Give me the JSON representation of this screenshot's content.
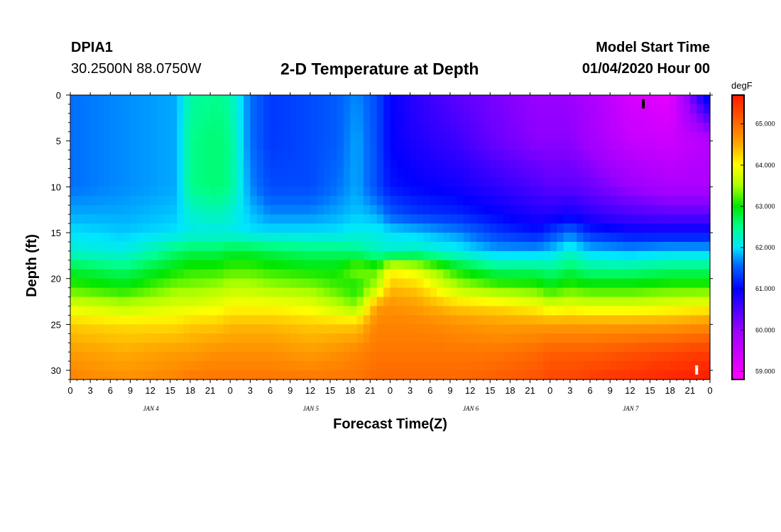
{
  "header": {
    "station": "DPIA1",
    "coords": "30.2500N 88.0750W",
    "title": "2-D Temperature at Depth",
    "model_label": "Model Start Time",
    "model_time": "01/04/2020 Hour 00"
  },
  "chart_data": {
    "type": "heatmap",
    "title": "2-D Temperature at Depth",
    "xlabel": "Forecast Time(Z)",
    "ylabel": "Depth (ft)",
    "xlim_hours": [
      0,
      96
    ],
    "ylim": [
      0,
      31
    ],
    "y_inverted": true,
    "x_tick_hours": [
      0,
      3,
      6,
      9,
      12,
      15,
      18,
      21,
      24,
      27,
      30,
      33,
      36,
      39,
      42,
      45,
      48,
      51,
      54,
      57,
      60,
      63,
      66,
      69,
      72,
      75,
      78,
      81,
      84,
      87,
      90,
      93,
      96
    ],
    "x_tick_labels": [
      "0",
      "3",
      "6",
      "9",
      "12",
      "15",
      "18",
      "21",
      "0",
      "3",
      "6",
      "9",
      "12",
      "15",
      "18",
      "21",
      "0",
      "3",
      "6",
      "9",
      "12",
      "15",
      "18",
      "21",
      "0",
      "3",
      "6",
      "9",
      "12",
      "15",
      "18",
      "21",
      "0"
    ],
    "date_labels": [
      {
        "hour": 12,
        "label": "JAN 4"
      },
      {
        "hour": 36,
        "label": "JAN 5"
      },
      {
        "hour": 60,
        "label": "JAN 6"
      },
      {
        "hour": 84,
        "label": "JAN 7"
      }
    ],
    "y_ticks": [
      0,
      5,
      10,
      15,
      20,
      25,
      30
    ],
    "y_tick_labels": [
      "0",
      "5",
      "10",
      "15",
      "20",
      "25",
      "30"
    ],
    "colorbar": {
      "unit": "degF",
      "range": [
        58.8,
        65.7
      ],
      "ticks": [
        59.0,
        60.0,
        61.0,
        62.0,
        63.0,
        64.0,
        65.0
      ],
      "tick_labels": [
        "59.000",
        "60.000",
        "61.000",
        "62.000",
        "63.000",
        "64.000",
        "65.000"
      ]
    },
    "max_marker": {
      "hour": 94,
      "depth": 30
    },
    "min_marker": {
      "hour": 86,
      "depth": 1
    },
    "profile_times_hours": [
      0,
      8,
      16,
      18,
      22,
      24,
      27,
      30,
      36,
      40,
      43,
      46,
      48,
      52,
      58,
      64,
      70,
      72,
      75,
      78,
      84,
      90,
      96
    ],
    "profile_depths_ft": [
      0,
      5,
      10,
      13,
      15,
      17,
      19,
      21,
      23,
      25,
      28,
      31
    ],
    "profiles_degF": [
      [
        61.6,
        61.6,
        61.6,
        61.8,
        62.0,
        62.2,
        62.8,
        63.2,
        63.8,
        64.3,
        64.6,
        64.8
      ],
      [
        61.7,
        61.7,
        61.7,
        61.8,
        61.9,
        62.1,
        62.6,
        63.0,
        63.6,
        64.2,
        64.5,
        64.7
      ],
      [
        61.8,
        61.8,
        61.8,
        61.9,
        62.0,
        62.6,
        63.0,
        63.4,
        63.8,
        64.2,
        64.6,
        64.8
      ],
      [
        62.4,
        62.5,
        62.5,
        62.2,
        62.1,
        62.7,
        63.1,
        63.4,
        63.8,
        64.3,
        64.6,
        64.9
      ],
      [
        62.5,
        62.6,
        62.6,
        62.3,
        62.1,
        62.7,
        63.1,
        63.5,
        63.9,
        64.3,
        64.7,
        64.9
      ],
      [
        62.4,
        62.5,
        62.5,
        62.2,
        62.1,
        62.8,
        63.2,
        63.6,
        64.0,
        64.4,
        64.7,
        64.9
      ],
      [
        61.6,
        61.6,
        61.7,
        61.9,
        62.0,
        62.8,
        63.2,
        63.6,
        64.0,
        64.4,
        64.7,
        64.9
      ],
      [
        61.3,
        61.3,
        61.4,
        61.7,
        62.0,
        62.7,
        63.1,
        63.5,
        64.0,
        64.4,
        64.7,
        64.9
      ],
      [
        61.4,
        61.4,
        61.4,
        61.7,
        62.0,
        62.6,
        63.0,
        63.4,
        63.9,
        64.3,
        64.6,
        64.9
      ],
      [
        61.5,
        61.5,
        61.6,
        61.8,
        62.0,
        62.6,
        63.0,
        63.2,
        63.6,
        64.3,
        64.7,
        64.9
      ],
      [
        61.7,
        61.8,
        61.8,
        61.9,
        62.1,
        62.5,
        63.4,
        63.0,
        63.4,
        64.3,
        64.8,
        64.9
      ],
      [
        61.4,
        61.4,
        61.4,
        61.8,
        62.1,
        62.3,
        63.2,
        63.6,
        64.6,
        64.8,
        64.9,
        65.0
      ],
      [
        61.0,
        61.0,
        61.1,
        61.5,
        62.0,
        62.2,
        64.0,
        64.4,
        64.7,
        64.8,
        64.9,
        65.0
      ],
      [
        60.7,
        60.8,
        61.0,
        61.3,
        61.9,
        62.3,
        63.8,
        64.3,
        64.6,
        64.8,
        64.9,
        65.0
      ],
      [
        60.4,
        60.6,
        60.9,
        61.2,
        61.7,
        62.1,
        63.0,
        63.6,
        64.3,
        64.7,
        64.9,
        65.0
      ],
      [
        60.2,
        60.3,
        60.7,
        61.0,
        61.3,
        61.8,
        62.6,
        63.3,
        64.2,
        64.6,
        64.9,
        65.1
      ],
      [
        60.0,
        60.1,
        60.5,
        60.8,
        61.1,
        61.8,
        62.6,
        63.2,
        64.0,
        64.6,
        65.0,
        65.2
      ],
      [
        60.0,
        60.1,
        60.4,
        60.8,
        61.3,
        61.9,
        62.5,
        63.0,
        63.8,
        64.6,
        65.1,
        65.3
      ],
      [
        60.0,
        60.1,
        60.4,
        60.9,
        61.6,
        62.2,
        62.7,
        63.2,
        63.9,
        64.6,
        65.1,
        65.3
      ],
      [
        59.8,
        59.9,
        60.3,
        60.7,
        61.2,
        61.9,
        62.5,
        63.1,
        63.8,
        64.6,
        65.1,
        65.4
      ],
      [
        59.3,
        59.5,
        60.0,
        60.5,
        61.0,
        61.8,
        62.5,
        63.1,
        63.8,
        64.6,
        65.2,
        65.5
      ],
      [
        59.1,
        59.4,
        59.8,
        60.4,
        61.0,
        61.9,
        62.6,
        63.2,
        63.9,
        64.6,
        65.3,
        65.6
      ],
      [
        61.3,
        59.7,
        59.8,
        60.4,
        61.0,
        61.9,
        62.6,
        63.2,
        64.0,
        64.7,
        65.4,
        65.7
      ]
    ]
  }
}
